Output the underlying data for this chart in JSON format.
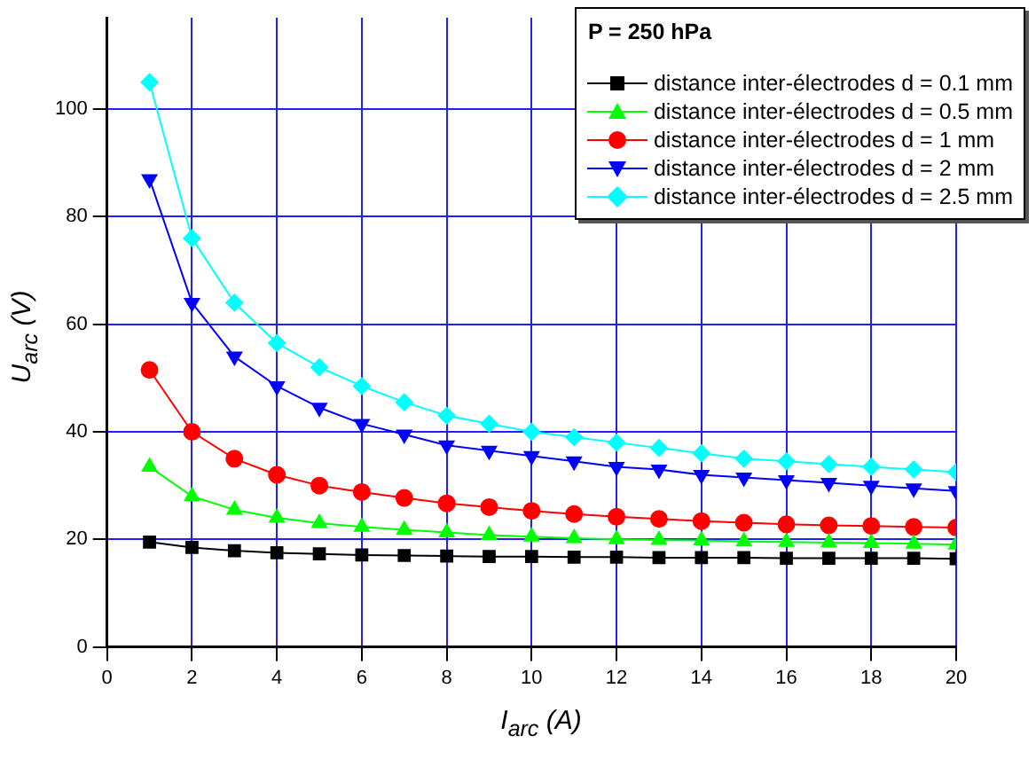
{
  "chart_data": {
    "type": "line",
    "xlabel": "I$_{arc}$ (A)",
    "ylabel": "U$_{arc}$ (V)",
    "legend_title": "P = 250 hPa",
    "x": [
      1,
      2,
      3,
      4,
      5,
      6,
      7,
      8,
      9,
      10,
      11,
      12,
      13,
      14,
      15,
      16,
      17,
      18,
      19,
      20
    ],
    "xlim": [
      0,
      20
    ],
    "xticks": [
      0,
      2,
      4,
      6,
      8,
      10,
      12,
      14,
      16,
      18,
      20
    ],
    "ylim": [
      0,
      117
    ],
    "yticks": [
      0,
      20,
      40,
      60,
      80,
      100
    ],
    "grid": true,
    "legend": "top right",
    "series": [
      {
        "name": "distance inter-électrodes d = 0.1 mm",
        "color": "#000000",
        "marker": "square",
        "values": [
          19.5,
          18.5,
          17.9,
          17.5,
          17.3,
          17.1,
          17,
          16.9,
          16.8,
          16.8,
          16.7,
          16.7,
          16.6,
          16.6,
          16.6,
          16.5,
          16.5,
          16.5,
          16.5,
          16.4
        ]
      },
      {
        "name": "distance inter-électrodes d = 0.5 mm",
        "color": "#00ff00",
        "marker": "triangle",
        "values": [
          33.5,
          28,
          25.5,
          24,
          23,
          22.3,
          21.8,
          21.3,
          20.8,
          20.5,
          20.2,
          20,
          19.9,
          19.8,
          19.6,
          19.5,
          19.4,
          19.3,
          19.2,
          19
        ]
      },
      {
        "name": "distance inter-électrodes d = 1 mm",
        "color": "#ff0000",
        "marker": "circle",
        "values": [
          51.5,
          40,
          35,
          32,
          30,
          28.8,
          27.7,
          26.7,
          26,
          25.3,
          24.7,
          24.2,
          23.8,
          23.4,
          23.1,
          22.8,
          22.6,
          22.5,
          22.3,
          22.2
        ]
      },
      {
        "name": "distance inter-électrodes d = 2 mm",
        "color": "#0000ff",
        "marker": "triangle-down",
        "values": [
          87,
          64,
          54,
          48.5,
          44.5,
          41.5,
          39.5,
          37.5,
          36.5,
          35.5,
          34.5,
          33.5,
          33,
          32,
          31.5,
          31,
          30.5,
          30,
          29.5,
          29
        ]
      },
      {
        "name": "distance inter-électrodes d = 2.5 mm",
        "color": "#00ffff",
        "marker": "diamond",
        "values": [
          105,
          76,
          64,
          56.5,
          52,
          48.5,
          45.5,
          43,
          41.5,
          40,
          39,
          38,
          37,
          36,
          35,
          34.5,
          34,
          33.5,
          33,
          32.5
        ]
      }
    ]
  }
}
